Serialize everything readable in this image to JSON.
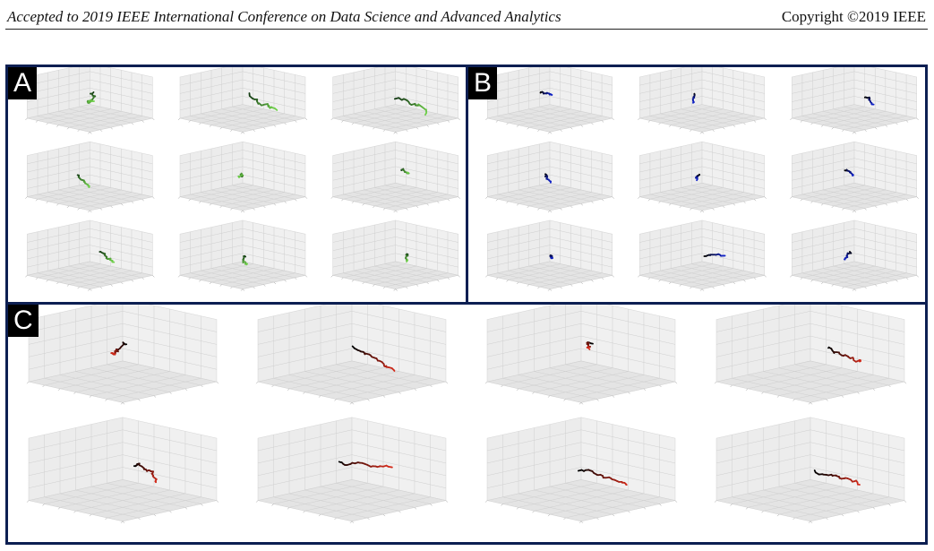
{
  "header": {
    "left": "Accepted to 2019 IEEE International Conference on Data Science and Advanced Analytics",
    "right": "Copyright ©2019 IEEE"
  },
  "panels": [
    {
      "label": "A",
      "rows": 3,
      "cols": 3,
      "trajectory_colors": [
        "#143b14",
        "#6fd04a"
      ],
      "trajectory_style": "green-gradient"
    },
    {
      "label": "B",
      "rows": 3,
      "cols": 3,
      "trajectory_colors": [
        "#000000",
        "#1022c8"
      ],
      "trajectory_style": "blue-gradient"
    },
    {
      "label": "C",
      "rows": 2,
      "cols": 4,
      "trajectory_colors": [
        "#000000",
        "#d42a1a"
      ],
      "trajectory_style": "red-gradient"
    }
  ]
}
